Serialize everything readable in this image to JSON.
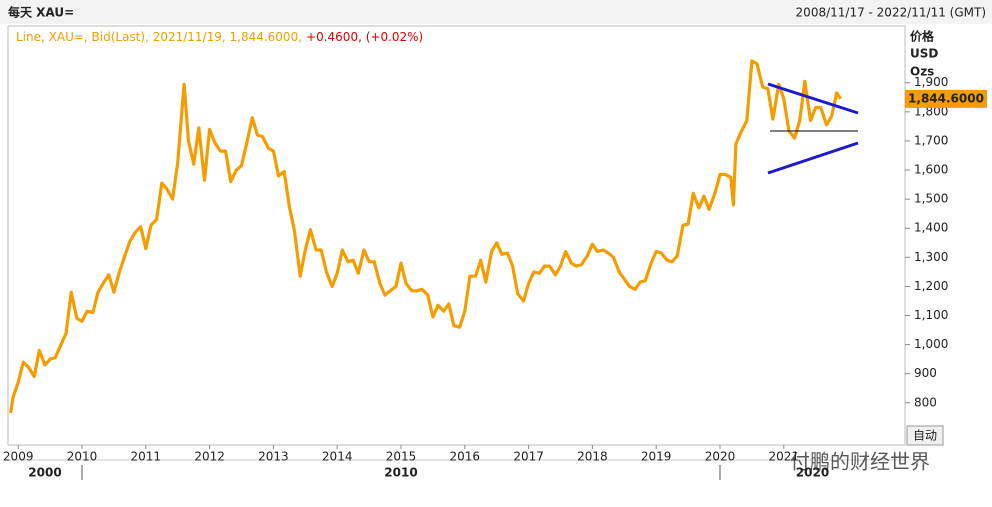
{
  "chart_data": {
    "type": "line",
    "title": "每天 XAU=",
    "date_range": "2008/11/17 - 2022/11/11 (GMT)",
    "legend_text": "Line, XAU=, Bid(Last), 2021/11/19, 1,844.6000,",
    "legend_change": "+0.4600, (+0.02%)",
    "y_unit": [
      "价格",
      "USD",
      "Ozs"
    ],
    "auto_button": "自动",
    "watermark": "付鹏的财经世界",
    "last_label": {
      "value": 1844.6,
      "label": "1,844.6000"
    },
    "xlim": [
      2008.84,
      2022.9
    ],
    "xticks": [
      2009,
      2010,
      2011,
      2012,
      2013,
      2014,
      2015,
      2016,
      2017,
      2018,
      2019,
      2020,
      2021
    ],
    "decades": [
      {
        "value": 2000,
        "label": "2000"
      },
      {
        "value": 2010,
        "label": "2010"
      },
      {
        "value": 2020,
        "label": "2020"
      }
    ],
    "ylim": [
      655,
      2095
    ],
    "yticks": [
      800,
      900,
      {
        "value": 1000,
        "label": "1,000"
      },
      {
        "value": 1100,
        "label": "1,100"
      },
      {
        "value": 1200,
        "label": "1,200"
      },
      {
        "value": 1300,
        "label": "1,300"
      },
      {
        "value": 1400,
        "label": "1,400"
      },
      {
        "value": 1500,
        "label": "1,500"
      },
      {
        "value": 1600,
        "label": "1,600"
      },
      {
        "value": 1700,
        "label": "1,700"
      },
      {
        "value": 1800,
        "label": "1,800"
      },
      {
        "value": 1900,
        "label": "1,900"
      }
    ],
    "series": [
      {
        "name": "XAU=",
        "color": "#f59d00",
        "x": [
          2008.88,
          2008.92,
          2009.0,
          2009.08,
          2009.17,
          2009.25,
          2009.33,
          2009.42,
          2009.5,
          2009.58,
          2009.67,
          2009.75,
          2009.83,
          2009.92,
          2010.0,
          2010.08,
          2010.17,
          2010.25,
          2010.33,
          2010.42,
          2010.5,
          2010.58,
          2010.67,
          2010.75,
          2010.83,
          2010.92,
          2011.0,
          2011.08,
          2011.17,
          2011.25,
          2011.33,
          2011.42,
          2011.5,
          2011.6,
          2011.67,
          2011.75,
          2011.83,
          2011.92,
          2012.0,
          2012.08,
          2012.17,
          2012.25,
          2012.33,
          2012.42,
          2012.5,
          2012.58,
          2012.67,
          2012.75,
          2012.83,
          2012.92,
          2013.0,
          2013.08,
          2013.17,
          2013.25,
          2013.33,
          2013.42,
          2013.5,
          2013.58,
          2013.67,
          2013.75,
          2013.83,
          2013.92,
          2014.0,
          2014.08,
          2014.17,
          2014.25,
          2014.33,
          2014.42,
          2014.5,
          2014.58,
          2014.67,
          2014.75,
          2014.83,
          2014.92,
          2015.0,
          2015.08,
          2015.17,
          2015.25,
          2015.33,
          2015.42,
          2015.5,
          2015.58,
          2015.67,
          2015.75,
          2015.83,
          2015.92,
          2016.0,
          2016.08,
          2016.17,
          2016.25,
          2016.33,
          2016.42,
          2016.5,
          2016.58,
          2016.67,
          2016.75,
          2016.83,
          2016.92,
          2017.0,
          2017.08,
          2017.17,
          2017.25,
          2017.33,
          2017.42,
          2017.5,
          2017.58,
          2017.67,
          2017.75,
          2017.83,
          2017.92,
          2018.0,
          2018.08,
          2018.17,
          2018.25,
          2018.33,
          2018.42,
          2018.5,
          2018.58,
          2018.67,
          2018.75,
          2018.83,
          2018.92,
          2019.0,
          2019.08,
          2019.17,
          2019.25,
          2019.33,
          2019.42,
          2019.5,
          2019.58,
          2019.67,
          2019.75,
          2019.83,
          2019.92,
          2020.0,
          2020.08,
          2020.17,
          2020.21,
          2020.25,
          2020.33,
          2020.42,
          2020.5,
          2020.58,
          2020.67,
          2020.75,
          2020.83,
          2020.92,
          2021.0,
          2021.08,
          2021.17,
          2021.25,
          2021.33,
          2021.42,
          2021.5,
          2021.58,
          2021.67,
          2021.75,
          2021.83,
          2021.89
        ],
        "values": [
          765,
          820,
          870,
          940,
          920,
          890,
          980,
          930,
          950,
          955,
          1000,
          1040,
          1180,
          1090,
          1080,
          1115,
          1110,
          1180,
          1210,
          1240,
          1180,
          1245,
          1305,
          1355,
          1385,
          1405,
          1330,
          1410,
          1430,
          1555,
          1535,
          1500,
          1625,
          1895,
          1700,
          1620,
          1745,
          1565,
          1740,
          1695,
          1665,
          1665,
          1560,
          1600,
          1615,
          1690,
          1780,
          1720,
          1715,
          1675,
          1665,
          1580,
          1595,
          1475,
          1390,
          1235,
          1325,
          1395,
          1325,
          1325,
          1250,
          1200,
          1245,
          1325,
          1285,
          1290,
          1245,
          1325,
          1285,
          1285,
          1210,
          1170,
          1185,
          1200,
          1280,
          1210,
          1185,
          1185,
          1190,
          1170,
          1095,
          1135,
          1115,
          1140,
          1065,
          1060,
          1115,
          1235,
          1235,
          1290,
          1215,
          1320,
          1350,
          1310,
          1315,
          1270,
          1175,
          1150,
          1210,
          1250,
          1245,
          1270,
          1270,
          1240,
          1270,
          1320,
          1280,
          1270,
          1275,
          1305,
          1345,
          1320,
          1325,
          1315,
          1300,
          1250,
          1225,
          1200,
          1190,
          1215,
          1220,
          1280,
          1320,
          1315,
          1290,
          1285,
          1305,
          1410,
          1415,
          1520,
          1470,
          1510,
          1465,
          1520,
          1585,
          1585,
          1575,
          1480,
          1690,
          1730,
          1770,
          1975,
          1965,
          1885,
          1880,
          1775,
          1895,
          1845,
          1735,
          1710,
          1770,
          1905,
          1770,
          1815,
          1815,
          1755,
          1785,
          1865,
          1844.6
        ]
      }
    ]
  }
}
